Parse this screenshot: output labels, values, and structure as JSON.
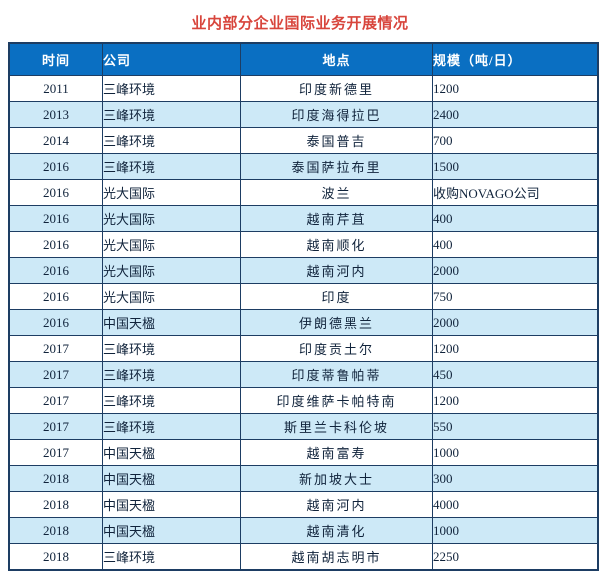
{
  "title": "业内部分企业国际业务开展情况",
  "table": {
    "headers": [
      "时间",
      "公司",
      "地点",
      "规模（吨/日）"
    ],
    "rows": [
      [
        "2011",
        "三峰环境",
        "印度新德里",
        "1200"
      ],
      [
        "2013",
        "三峰环境",
        "印度海得拉巴",
        "2400"
      ],
      [
        "2014",
        "三峰环境",
        "泰国普吉",
        "700"
      ],
      [
        "2016",
        "三峰环境",
        "泰国萨拉布里",
        "1500"
      ],
      [
        "2016",
        "光大国际",
        "波兰",
        "收购NOVAGO公司"
      ],
      [
        "2016",
        "光大国际",
        "越南芹苴",
        "400"
      ],
      [
        "2016",
        "光大国际",
        "越南顺化",
        "400"
      ],
      [
        "2016",
        "光大国际",
        "越南河内",
        "2000"
      ],
      [
        "2016",
        "光大国际",
        "印度",
        "750"
      ],
      [
        "2016",
        "中国天楹",
        "伊朗德黑兰",
        "2000"
      ],
      [
        "2017",
        "三峰环境",
        "印度贡土尔",
        "1200"
      ],
      [
        "2017",
        "三峰环境",
        "印度蒂鲁帕蒂",
        "450"
      ],
      [
        "2017",
        "三峰环境",
        "印度维萨卡帕特南",
        "1200"
      ],
      [
        "2017",
        "三峰环境",
        "斯里兰卡科伦坡",
        "550"
      ],
      [
        "2017",
        "中国天楹",
        "越南富寿",
        "1000"
      ],
      [
        "2018",
        "中国天楹",
        "新加坡大士",
        "300"
      ],
      [
        "2018",
        "中国天楹",
        "越南河内",
        "4000"
      ],
      [
        "2018",
        "中国天楹",
        "越南清化",
        "1000"
      ],
      [
        "2018",
        "三峰环境",
        "越南胡志明市",
        "2250"
      ]
    ]
  },
  "colors": {
    "title": "#d8453c",
    "header_bg": "#0a6fc2",
    "header_text": "#ffffff",
    "stripe_bg": "#cde9f7",
    "border": "#1d3d63",
    "text": "#10233b"
  }
}
